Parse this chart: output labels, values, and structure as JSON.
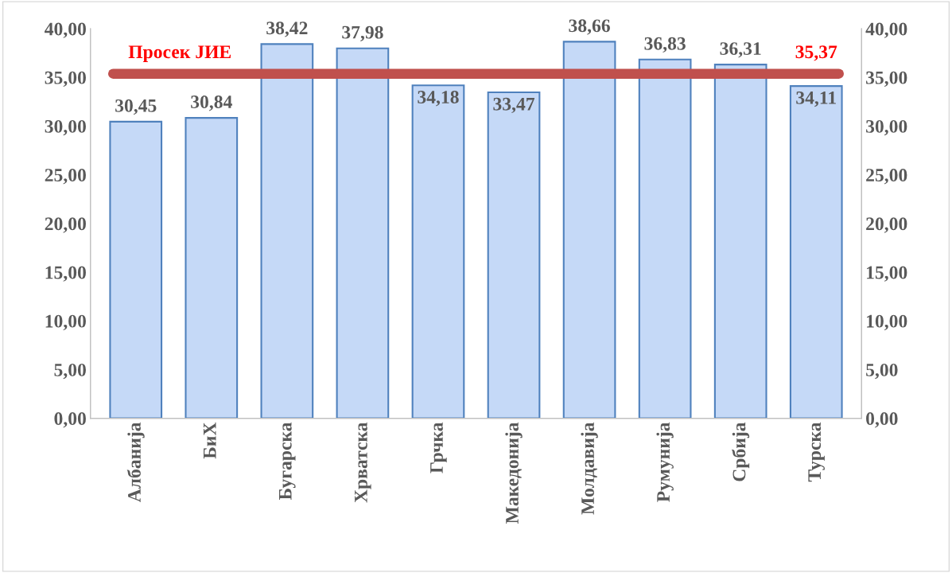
{
  "chart_data": {
    "type": "bar",
    "categories": [
      "Албанија",
      "БиХ",
      "Бугарска",
      "Хрватска",
      "Грчка",
      "Македонија",
      "Молдавија",
      "Румунија",
      "Србија",
      "Турска"
    ],
    "values": [
      30.45,
      30.84,
      38.42,
      37.98,
      34.18,
      33.47,
      38.66,
      36.83,
      36.31,
      34.11
    ],
    "value_labels": [
      "30,45",
      "30,84",
      "38,42",
      "37,98",
      "34,18",
      "33,47",
      "38,66",
      "36,83",
      "36,31",
      "34,11"
    ],
    "color": "#c5d9f7",
    "ylim": [
      0,
      40
    ],
    "yticks": [
      {
        "value": 0,
        "label": "0,00"
      },
      {
        "value": 5,
        "label": "5,00"
      },
      {
        "value": 10,
        "label": "10,00"
      },
      {
        "value": 15,
        "label": "15,00"
      },
      {
        "value": 20,
        "label": "20,00"
      },
      {
        "value": 25,
        "label": "25,00"
      },
      {
        "value": 30,
        "label": "30,00"
      },
      {
        "value": 35,
        "label": "35,00"
      },
      {
        "value": 40,
        "label": "40,00"
      }
    ],
    "y2lim": [
      0,
      40
    ],
    "y2ticks": [
      {
        "value": 0,
        "label": "0,00"
      },
      {
        "value": 5,
        "label": "5,00"
      },
      {
        "value": 10,
        "label": "10,00"
      },
      {
        "value": 15,
        "label": "15,00"
      },
      {
        "value": 20,
        "label": "20,00"
      },
      {
        "value": 25,
        "label": "25,00"
      },
      {
        "value": 30,
        "label": "30,00"
      },
      {
        "value": 35,
        "label": "35,00"
      },
      {
        "value": 40,
        "label": "40,00"
      }
    ],
    "ref_lines": [
      {
        "axis": "y",
        "value": 35.37,
        "label": "Просек ЈИЕ",
        "color": "#c0504d"
      }
    ],
    "annotations": [
      {
        "text": "35,37",
        "x": "Турска",
        "y": 35.37
      }
    ],
    "grid": false,
    "legend": false
  }
}
